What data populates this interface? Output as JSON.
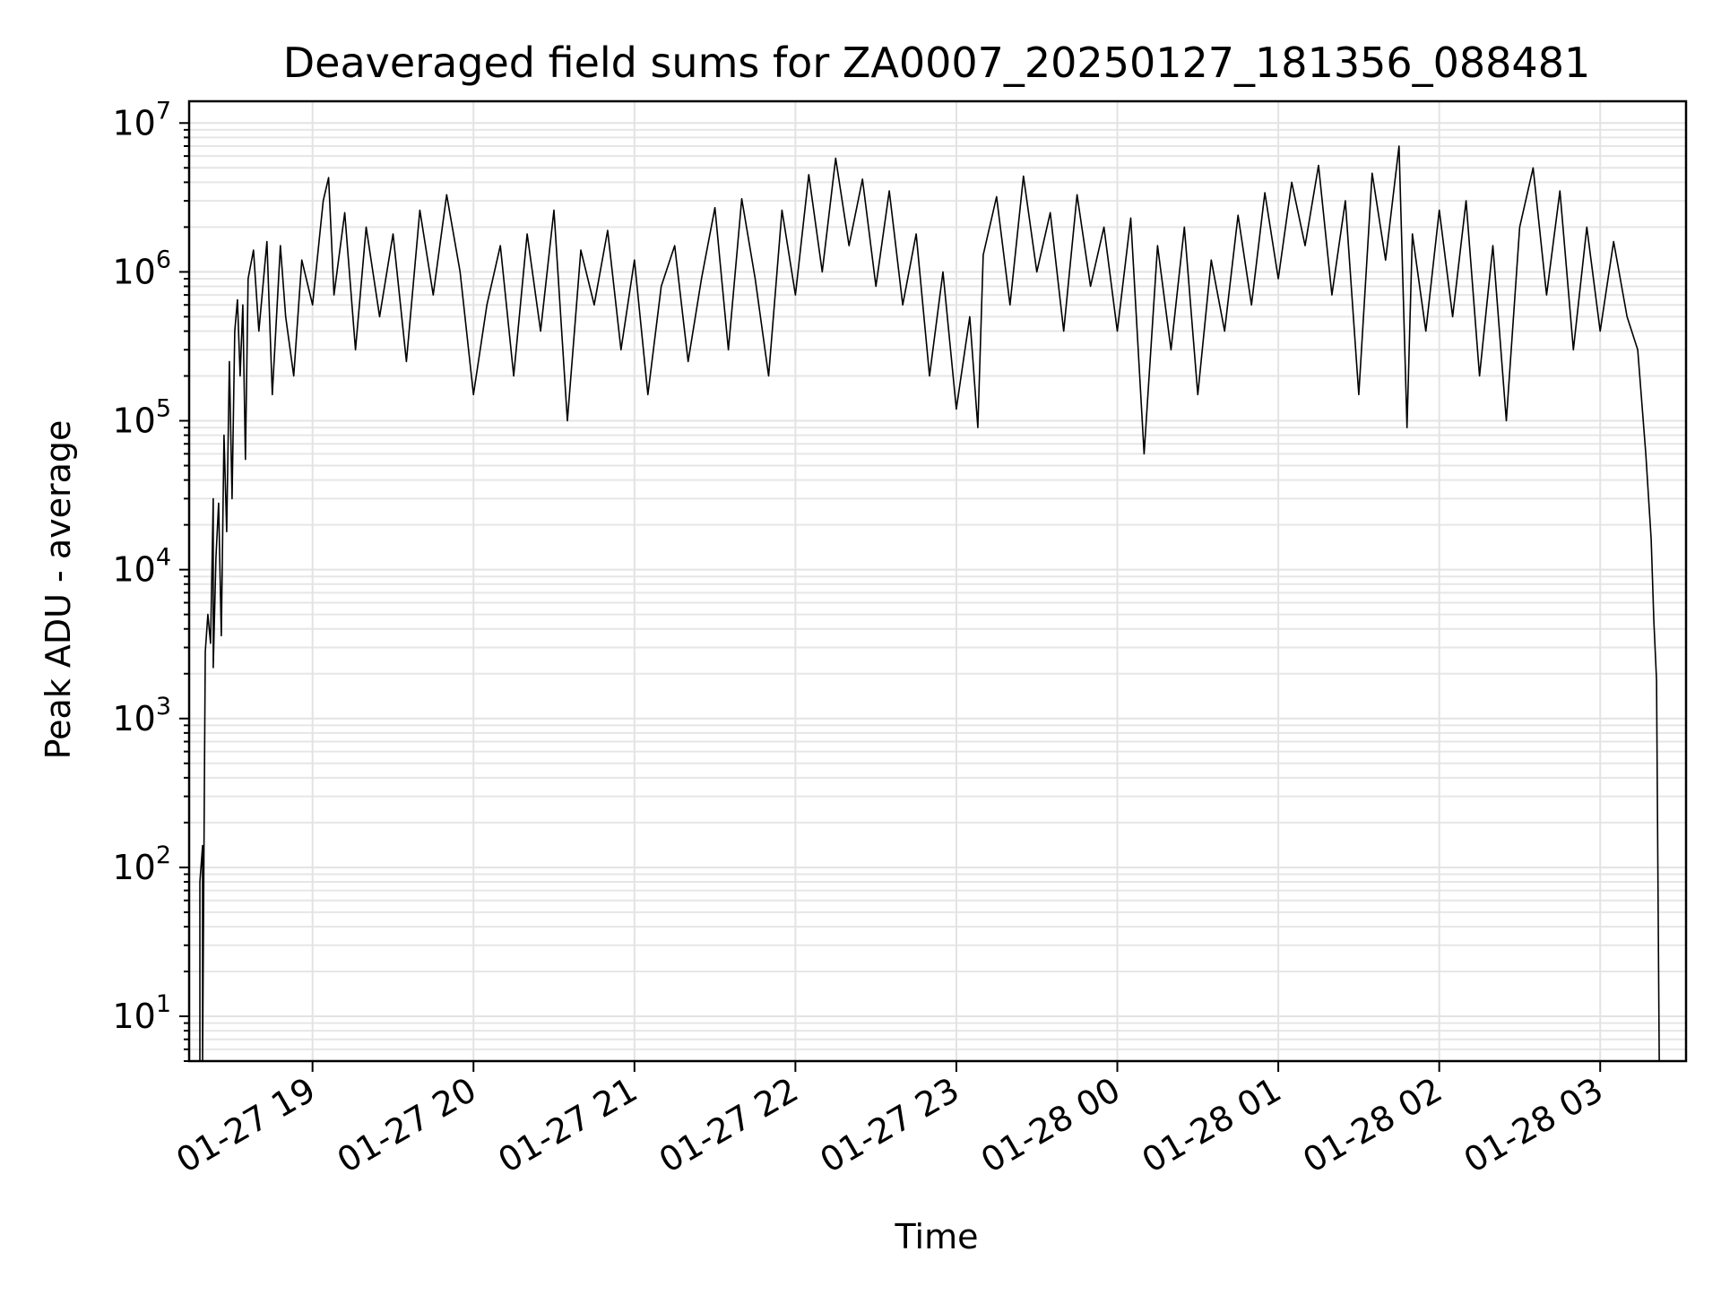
{
  "chart_data": {
    "type": "line",
    "title": "Deaveraged field sums for ZA0007_20250127_181356_088481",
    "xlabel": "Time",
    "ylabel": "Peak ADU - average",
    "yscale": "log",
    "ylim": [
      5,
      14000000
    ],
    "xlim": [
      "2025-01-27 18:14",
      "2025-01-28 03:32"
    ],
    "grid": true,
    "x_ticks": [
      "01-27 19",
      "01-27 20",
      "01-27 21",
      "01-27 22",
      "01-27 23",
      "01-28 00",
      "01-28 01",
      "01-28 02",
      "01-28 03"
    ],
    "y_ticks": [
      {
        "base": "10",
        "exp": "1"
      },
      {
        "base": "10",
        "exp": "2"
      },
      {
        "base": "10",
        "exp": "3"
      },
      {
        "base": "10",
        "exp": "4"
      },
      {
        "base": "10",
        "exp": "5"
      },
      {
        "base": "10",
        "exp": "6"
      },
      {
        "base": "10",
        "exp": "7"
      }
    ],
    "line_color": "#000000",
    "series": [
      {
        "points": [
          [
            "2025-01-27 18:18",
            5
          ],
          [
            "2025-01-27 18:18",
            80
          ],
          [
            "2025-01-27 18:19",
            140
          ],
          [
            "2025-01-27 18:19",
            5
          ],
          [
            "2025-01-27 18:20",
            2800
          ],
          [
            "2025-01-27 18:21",
            5000
          ],
          [
            "2025-01-27 18:22",
            3200
          ],
          [
            "2025-01-27 18:23",
            30000
          ],
          [
            "2025-01-27 18:23",
            2200
          ],
          [
            "2025-01-27 18:24",
            12000
          ],
          [
            "2025-01-27 18:25",
            28000
          ],
          [
            "2025-01-27 18:26",
            3600
          ],
          [
            "2025-01-27 18:27",
            80000
          ],
          [
            "2025-01-27 18:28",
            18000
          ],
          [
            "2025-01-27 18:29",
            250000
          ],
          [
            "2025-01-27 18:30",
            30000
          ],
          [
            "2025-01-27 18:31",
            400000
          ],
          [
            "2025-01-27 18:32",
            650000
          ],
          [
            "2025-01-27 18:33",
            200000
          ],
          [
            "2025-01-27 18:34",
            600000
          ],
          [
            "2025-01-27 18:35",
            55000
          ],
          [
            "2025-01-27 18:36",
            900000
          ],
          [
            "2025-01-27 18:38",
            1400000
          ],
          [
            "2025-01-27 18:40",
            400000
          ],
          [
            "2025-01-27 18:43",
            1600000
          ],
          [
            "2025-01-27 18:45",
            150000
          ],
          [
            "2025-01-27 18:48",
            1500000
          ],
          [
            "2025-01-27 18:50",
            500000
          ],
          [
            "2025-01-27 18:53",
            200000
          ],
          [
            "2025-01-27 18:56",
            1200000
          ],
          [
            "2025-01-27 19:00",
            600000
          ],
          [
            "2025-01-27 19:04",
            3000000
          ],
          [
            "2025-01-27 19:06",
            4300000
          ],
          [
            "2025-01-27 19:08",
            700000
          ],
          [
            "2025-01-27 19:12",
            2500000
          ],
          [
            "2025-01-27 19:16",
            300000
          ],
          [
            "2025-01-27 19:20",
            2000000
          ],
          [
            "2025-01-27 19:25",
            500000
          ],
          [
            "2025-01-27 19:30",
            1800000
          ],
          [
            "2025-01-27 19:35",
            250000
          ],
          [
            "2025-01-27 19:40",
            2600000
          ],
          [
            "2025-01-27 19:45",
            700000
          ],
          [
            "2025-01-27 19:50",
            3300000
          ],
          [
            "2025-01-27 19:55",
            1000000
          ],
          [
            "2025-01-27 20:00",
            150000
          ],
          [
            "2025-01-27 20:05",
            600000
          ],
          [
            "2025-01-27 20:10",
            1500000
          ],
          [
            "2025-01-27 20:15",
            200000
          ],
          [
            "2025-01-27 20:20",
            1800000
          ],
          [
            "2025-01-27 20:25",
            400000
          ],
          [
            "2025-01-27 20:30",
            2600000
          ],
          [
            "2025-01-27 20:35",
            100000
          ],
          [
            "2025-01-27 20:40",
            1400000
          ],
          [
            "2025-01-27 20:45",
            600000
          ],
          [
            "2025-01-27 20:50",
            1900000
          ],
          [
            "2025-01-27 20:55",
            300000
          ],
          [
            "2025-01-27 21:00",
            1200000
          ],
          [
            "2025-01-27 21:05",
            150000
          ],
          [
            "2025-01-27 21:10",
            800000
          ],
          [
            "2025-01-27 21:15",
            1500000
          ],
          [
            "2025-01-27 21:20",
            250000
          ],
          [
            "2025-01-27 21:25",
            900000
          ],
          [
            "2025-01-27 21:30",
            2700000
          ],
          [
            "2025-01-27 21:35",
            300000
          ],
          [
            "2025-01-27 21:40",
            3100000
          ],
          [
            "2025-01-27 21:45",
            900000
          ],
          [
            "2025-01-27 21:50",
            200000
          ],
          [
            "2025-01-27 21:55",
            2600000
          ],
          [
            "2025-01-27 22:00",
            700000
          ],
          [
            "2025-01-27 22:05",
            4500000
          ],
          [
            "2025-01-27 22:10",
            1000000
          ],
          [
            "2025-01-27 22:15",
            5800000
          ],
          [
            "2025-01-27 22:20",
            1500000
          ],
          [
            "2025-01-27 22:25",
            4200000
          ],
          [
            "2025-01-27 22:30",
            800000
          ],
          [
            "2025-01-27 22:35",
            3500000
          ],
          [
            "2025-01-27 22:40",
            600000
          ],
          [
            "2025-01-27 22:45",
            1800000
          ],
          [
            "2025-01-27 22:50",
            200000
          ],
          [
            "2025-01-27 22:55",
            1000000
          ],
          [
            "2025-01-27 23:00",
            120000
          ],
          [
            "2025-01-27 23:05",
            500000
          ],
          [
            "2025-01-27 23:08",
            90000
          ],
          [
            "2025-01-27 23:10",
            1300000
          ],
          [
            "2025-01-27 23:15",
            3200000
          ],
          [
            "2025-01-27 23:20",
            600000
          ],
          [
            "2025-01-27 23:25",
            4400000
          ],
          [
            "2025-01-27 23:30",
            1000000
          ],
          [
            "2025-01-27 23:35",
            2500000
          ],
          [
            "2025-01-27 23:40",
            400000
          ],
          [
            "2025-01-27 23:45",
            3300000
          ],
          [
            "2025-01-27 23:50",
            800000
          ],
          [
            "2025-01-27 23:55",
            2000000
          ],
          [
            "2025-01-28 00:00",
            400000
          ],
          [
            "2025-01-28 00:05",
            2300000
          ],
          [
            "2025-01-28 00:10",
            60000
          ],
          [
            "2025-01-28 00:15",
            1500000
          ],
          [
            "2025-01-28 00:20",
            300000
          ],
          [
            "2025-01-28 00:25",
            2000000
          ],
          [
            "2025-01-28 00:30",
            150000
          ],
          [
            "2025-01-28 00:35",
            1200000
          ],
          [
            "2025-01-28 00:40",
            400000
          ],
          [
            "2025-01-28 00:45",
            2400000
          ],
          [
            "2025-01-28 00:50",
            600000
          ],
          [
            "2025-01-28 00:55",
            3400000
          ],
          [
            "2025-01-28 01:00",
            900000
          ],
          [
            "2025-01-28 01:05",
            4000000
          ],
          [
            "2025-01-28 01:10",
            1500000
          ],
          [
            "2025-01-28 01:15",
            5200000
          ],
          [
            "2025-01-28 01:20",
            700000
          ],
          [
            "2025-01-28 01:25",
            3000000
          ],
          [
            "2025-01-28 01:30",
            150000
          ],
          [
            "2025-01-28 01:35",
            4600000
          ],
          [
            "2025-01-28 01:40",
            1200000
          ],
          [
            "2025-01-28 01:45",
            7000000
          ],
          [
            "2025-01-28 01:48",
            90000
          ],
          [
            "2025-01-28 01:50",
            1800000
          ],
          [
            "2025-01-28 01:55",
            400000
          ],
          [
            "2025-01-28 02:00",
            2600000
          ],
          [
            "2025-01-28 02:05",
            500000
          ],
          [
            "2025-01-28 02:10",
            3000000
          ],
          [
            "2025-01-28 02:15",
            200000
          ],
          [
            "2025-01-28 02:20",
            1500000
          ],
          [
            "2025-01-28 02:25",
            100000
          ],
          [
            "2025-01-28 02:30",
            2000000
          ],
          [
            "2025-01-28 02:35",
            5000000
          ],
          [
            "2025-01-28 02:40",
            700000
          ],
          [
            "2025-01-28 02:45",
            3500000
          ],
          [
            "2025-01-28 02:50",
            300000
          ],
          [
            "2025-01-28 02:55",
            2000000
          ],
          [
            "2025-01-28 03:00",
            400000
          ],
          [
            "2025-01-28 03:05",
            1600000
          ],
          [
            "2025-01-28 03:10",
            500000
          ],
          [
            "2025-01-28 03:14",
            300000
          ],
          [
            "2025-01-28 03:17",
            60000
          ],
          [
            "2025-01-28 03:19",
            16000
          ],
          [
            "2025-01-28 03:20",
            4500
          ],
          [
            "2025-01-28 03:21",
            1800
          ],
          [
            "2025-01-28 03:22",
            5
          ]
        ]
      }
    ]
  }
}
